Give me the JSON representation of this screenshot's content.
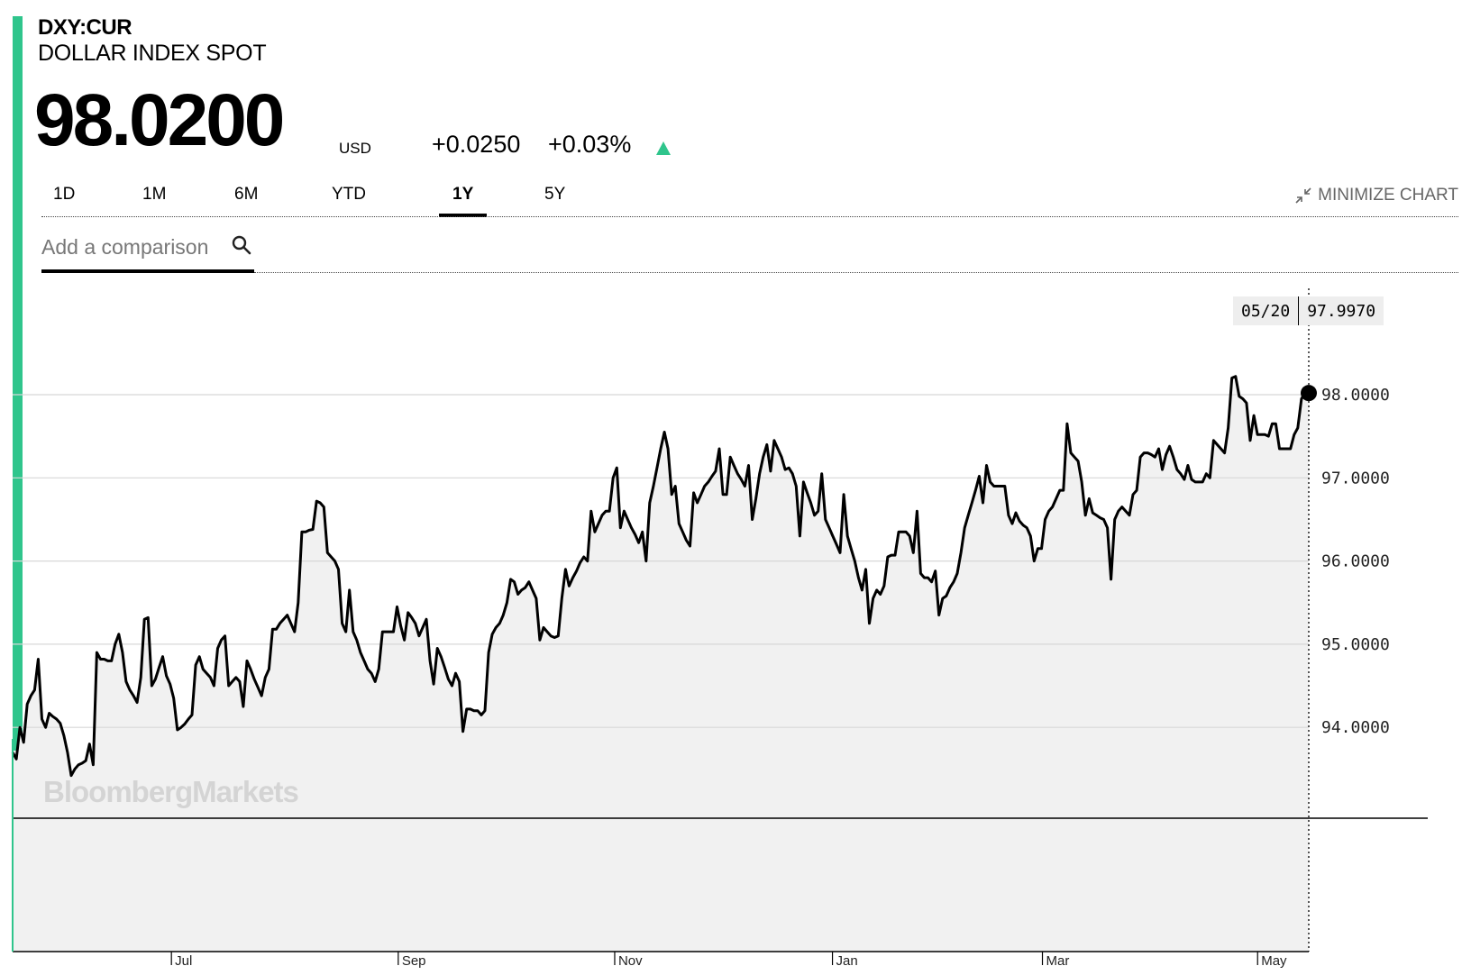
{
  "header": {
    "ticker": "DXY:CUR",
    "name": "DOLLAR INDEX SPOT",
    "price": "98.0200",
    "currency": "USD",
    "change": "+0.0250",
    "change_pct": "+0.03%",
    "direction_icon": "triangle-up-icon",
    "accent_color": "#2fc58c"
  },
  "range_tabs": [
    {
      "label": "1D",
      "active": false
    },
    {
      "label": "1M",
      "active": false
    },
    {
      "label": "6M",
      "active": false
    },
    {
      "label": "YTD",
      "active": false
    },
    {
      "label": "1Y",
      "active": true
    },
    {
      "label": "5Y",
      "active": false
    }
  ],
  "minimize": {
    "label": "MINIMIZE CHART",
    "icon": "minimize-arrows-icon"
  },
  "comparison": {
    "placeholder": "Add a comparison",
    "icon": "search-icon"
  },
  "watermark": "BloombergMarkets",
  "crosshair": {
    "date": "05/20",
    "value": "97.9970"
  },
  "chart_data": {
    "type": "line",
    "y_ticks": [
      "94.0000",
      "95.0000",
      "96.0000",
      "97.0000",
      "98.0000"
    ],
    "y_tick_values": [
      94,
      95,
      96,
      97,
      98
    ],
    "ylim": [
      92.8,
      98.9
    ],
    "x_tick_labels": [
      "Jul",
      "Sep",
      "Nov",
      "Jan",
      "Mar",
      "May"
    ],
    "x_tick_fractions": [
      0.11,
      0.285,
      0.452,
      0.62,
      0.782,
      0.948
    ],
    "fill_color": "#f1f1f1",
    "line_color": "#000000",
    "grid": true,
    "series": [
      {
        "values": [
          93.7,
          93.62,
          94.0,
          93.82,
          94.28,
          94.38,
          94.45,
          94.82,
          94.1,
          94.0,
          94.17,
          94.13,
          94.1,
          94.05,
          93.9,
          93.7,
          93.42,
          93.5,
          93.55,
          93.57,
          93.6,
          93.8,
          93.55,
          94.9,
          94.82,
          94.82,
          94.8,
          94.8,
          95.0,
          95.12,
          94.9,
          94.55,
          94.45,
          94.38,
          94.3,
          94.6,
          95.3,
          95.32,
          94.5,
          94.58,
          94.72,
          94.85,
          94.62,
          94.52,
          94.35,
          93.97,
          94.0,
          94.04,
          94.1,
          94.15,
          94.75,
          94.85,
          94.7,
          94.65,
          94.6,
          94.5,
          94.95,
          95.05,
          95.1,
          94.5,
          94.55,
          94.6,
          94.55,
          94.25,
          94.8,
          94.7,
          94.58,
          94.48,
          94.38,
          94.6,
          94.7,
          95.18,
          95.18,
          95.25,
          95.3,
          95.35,
          95.25,
          95.15,
          95.5,
          96.35,
          96.35,
          96.37,
          96.38,
          96.72,
          96.7,
          96.65,
          96.1,
          96.05,
          96.0,
          95.9,
          95.25,
          95.15,
          95.65,
          95.15,
          95.05,
          94.9,
          94.8,
          94.7,
          94.65,
          94.55,
          94.7,
          95.15,
          95.15,
          95.15,
          95.15,
          95.45,
          95.22,
          95.05,
          95.38,
          95.32,
          95.25,
          95.1,
          95.2,
          95.3,
          94.8,
          94.52,
          94.95,
          94.85,
          94.72,
          94.58,
          94.5,
          94.65,
          94.55,
          93.95,
          94.22,
          94.22,
          94.2,
          94.2,
          94.15,
          94.2,
          94.9,
          95.12,
          95.2,
          95.25,
          95.35,
          95.5,
          95.78,
          95.75,
          95.6,
          95.65,
          95.68,
          95.75,
          95.65,
          95.55,
          95.05,
          95.2,
          95.15,
          95.1,
          95.08,
          95.1,
          95.55,
          95.9,
          95.7,
          95.8,
          95.88,
          95.98,
          96.05,
          96.0,
          96.6,
          96.35,
          96.45,
          96.55,
          96.6,
          96.6,
          97.0,
          97.12,
          96.4,
          96.6,
          96.5,
          96.4,
          96.32,
          96.22,
          96.35,
          96.0,
          96.7,
          96.9,
          97.12,
          97.35,
          97.55,
          97.35,
          96.8,
          96.9,
          96.45,
          96.35,
          96.25,
          96.18,
          96.82,
          96.7,
          96.8,
          96.9,
          96.95,
          97.02,
          97.08,
          97.35,
          96.8,
          96.8,
          97.25,
          97.15,
          97.05,
          96.98,
          96.9,
          97.15,
          96.5,
          96.75,
          97.05,
          97.25,
          97.4,
          97.08,
          97.45,
          97.35,
          97.25,
          97.1,
          97.12,
          97.05,
          96.9,
          96.3,
          96.95,
          96.82,
          96.7,
          96.55,
          96.6,
          97.05,
          96.5,
          96.4,
          96.3,
          96.2,
          96.1,
          96.8,
          96.3,
          96.15,
          96.0,
          95.8,
          95.65,
          95.9,
          95.25,
          95.55,
          95.65,
          95.6,
          95.7,
          96.05,
          96.07,
          96.07,
          96.35,
          96.35,
          96.35,
          96.3,
          96.1,
          96.6,
          95.85,
          95.8,
          95.8,
          95.75,
          95.88,
          95.35,
          95.55,
          95.58,
          95.68,
          95.75,
          95.85,
          96.1,
          96.4,
          96.55,
          96.7,
          96.85,
          97.02,
          96.7,
          97.15,
          96.95,
          96.9,
          96.9,
          96.9,
          96.9,
          96.55,
          96.45,
          96.58,
          96.48,
          96.43,
          96.4,
          96.3,
          96.0,
          96.15,
          96.15,
          96.5,
          96.6,
          96.65,
          96.75,
          96.85,
          96.85,
          97.65,
          97.3,
          97.25,
          97.2,
          96.95,
          96.55,
          96.75,
          96.58,
          96.55,
          96.52,
          96.5,
          96.4,
          95.78,
          96.5,
          96.6,
          96.65,
          96.6,
          96.55,
          96.8,
          96.85,
          97.25,
          97.3,
          97.3,
          97.28,
          97.25,
          97.35,
          97.1,
          97.28,
          97.38,
          97.25,
          97.1,
          97.05,
          96.98,
          97.15,
          96.98,
          96.95,
          96.95,
          96.95,
          97.05,
          97.0,
          97.45,
          97.4,
          97.35,
          97.3,
          97.6,
          98.2,
          98.22,
          97.98,
          97.95,
          97.9,
          97.45,
          97.75,
          97.52,
          97.52,
          97.52,
          97.5,
          97.65,
          97.65,
          97.35,
          97.35,
          97.35,
          97.35,
          97.52,
          97.6,
          97.95,
          98.02,
          98.02
        ]
      }
    ]
  }
}
